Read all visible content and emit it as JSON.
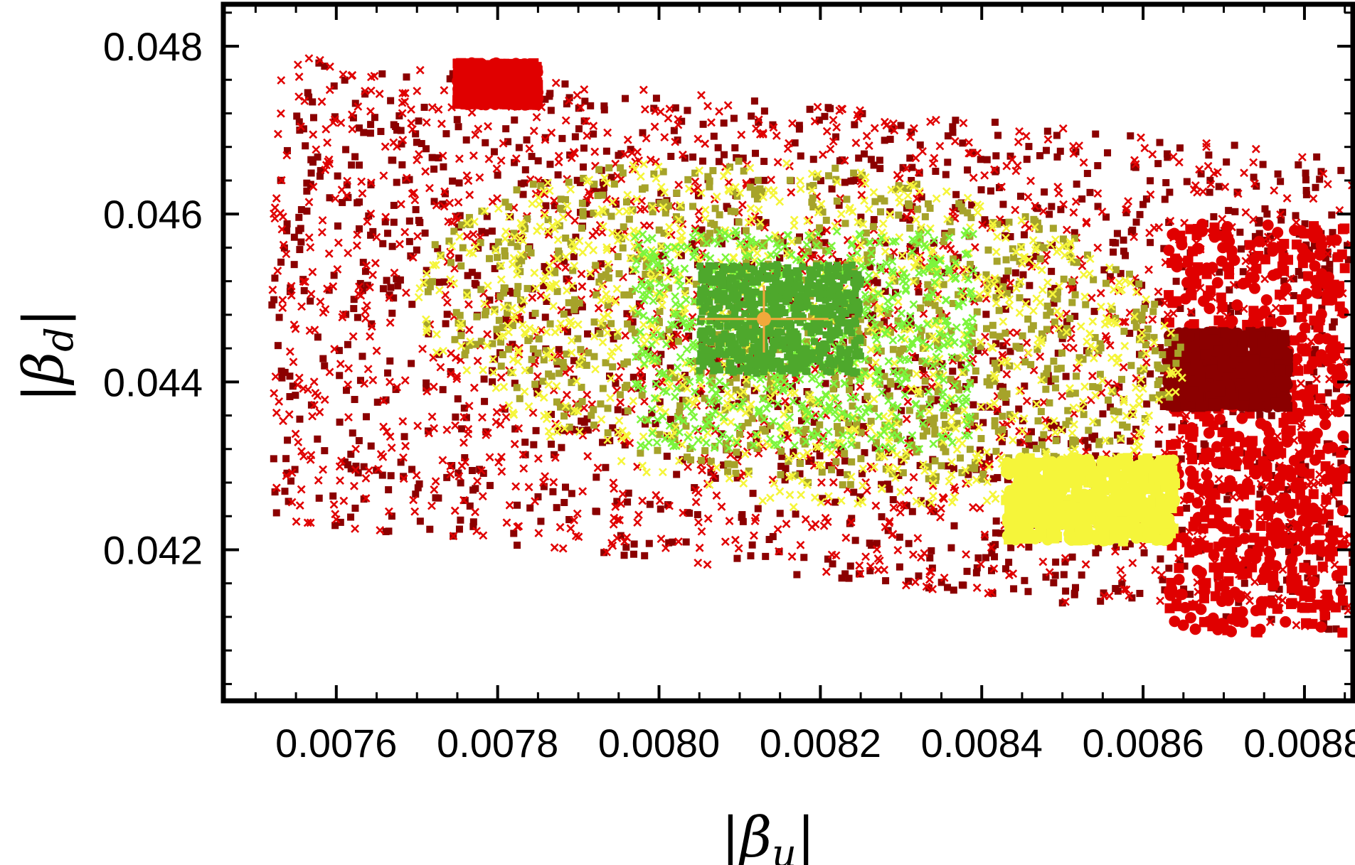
{
  "chart_data": {
    "type": "scatter",
    "title": "",
    "xlabel": "|βu|",
    "ylabel": "|βd|",
    "xlabel_parts": {
      "bar_left": "|",
      "symbol": "β",
      "subscript": "u",
      "bar_right": "|"
    },
    "ylabel_parts": {
      "bar_left": "|",
      "symbol": "β",
      "subscript": "d",
      "bar_right": "|"
    },
    "xlim": [
      0.00746,
      0.00886
    ],
    "ylim": [
      0.0402,
      0.0485
    ],
    "x_ticks": [
      "0.0076",
      "0.0078",
      "0.0080",
      "0.0082",
      "0.0084",
      "0.0086",
      "0.0088"
    ],
    "y_ticks": [
      "0.042",
      "0.044",
      "0.046",
      "0.048"
    ],
    "grid": false,
    "legend": "none",
    "colors": {
      "dark_red": "#8b0000",
      "red": "#e00000",
      "olive": "#a6a32a",
      "yellow": "#f5f53a",
      "light_green": "#7cf53c",
      "green": "#4ea82c",
      "best_fit": "#f2a93b"
    },
    "series": [
      {
        "color_key": "dark_red",
        "marker": "square",
        "region": {
          "x": [
            0.00752,
            0.00886
          ],
          "y": [
            0.0417,
            0.0478
          ]
        },
        "density": "sparse"
      },
      {
        "color_key": "red",
        "marker": "cross",
        "region": {
          "x": [
            0.00752,
            0.00886
          ],
          "y": [
            0.0417,
            0.0479
          ]
        },
        "density": "sparse"
      },
      {
        "color_key": "red",
        "marker": "dense-cluster",
        "region": {
          "x": [
            0.00863,
            0.00885
          ],
          "y": [
            0.041,
            0.0459
          ]
        },
        "density": "dense"
      },
      {
        "color_key": "red",
        "marker": "dense-cluster",
        "region": {
          "x": [
            0.00775,
            0.00785
          ],
          "y": [
            0.0473,
            0.0478
          ]
        },
        "density": "dense"
      },
      {
        "color_key": "dark_red",
        "marker": "dense-cluster",
        "region": {
          "x": [
            0.00863,
            0.00878
          ],
          "y": [
            0.0437,
            0.0446
          ]
        },
        "density": "dense"
      },
      {
        "color_key": "olive",
        "marker": "square",
        "region": {
          "x": [
            0.0077,
            0.00865
          ],
          "y": [
            0.0428,
            0.0466
          ]
        },
        "density": "medium"
      },
      {
        "color_key": "yellow",
        "marker": "cross",
        "region": {
          "x": [
            0.0077,
            0.00865
          ],
          "y": [
            0.0425,
            0.0466
          ]
        },
        "density": "medium"
      },
      {
        "color_key": "yellow",
        "marker": "dense-cluster",
        "region": {
          "x": [
            0.00843,
            0.00864
          ],
          "y": [
            0.0421,
            0.0431
          ]
        },
        "density": "dense"
      },
      {
        "color_key": "light_green",
        "marker": "cross",
        "region": {
          "x": [
            0.00797,
            0.00839
          ],
          "y": [
            0.0432,
            0.0458
          ]
        },
        "density": "dense"
      },
      {
        "color_key": "green",
        "marker": "square",
        "region": {
          "x": [
            0.00805,
            0.00825
          ],
          "y": [
            0.0441,
            0.0454
          ]
        },
        "density": "dense"
      }
    ],
    "best_fit_point": {
      "x": 0.00813,
      "y": 0.04475,
      "x_err": 8e-05,
      "y_err": 0.0004
    }
  }
}
